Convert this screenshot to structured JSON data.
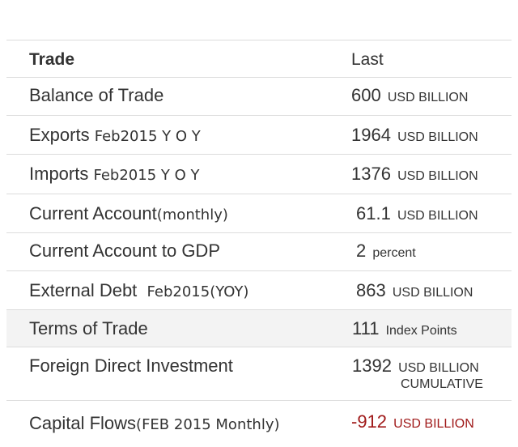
{
  "header": {
    "name": "Trade",
    "value": "Last"
  },
  "rows": [
    {
      "name": "Balance of Trade",
      "qualifier": "",
      "value": "600",
      "unit": "USD BILLION",
      "unit2": ""
    },
    {
      "name": "Exports",
      "qualifier": "Feb2015 Y O Y",
      "value": "1964",
      "unit": "USD BILLION",
      "unit2": ""
    },
    {
      "name": "Imports",
      "qualifier": "Feb2015 Y O Y",
      "value": "1376",
      "unit": "USD BILLION",
      "unit2": ""
    },
    {
      "name": "Current Account",
      "qualifier": "(monthly)",
      "value": "61.1",
      "unit": "USD BILLION",
      "unit2": ""
    },
    {
      "name": "Current Account to GDP",
      "qualifier": "",
      "value": "2",
      "unit": "percent",
      "unit2": ""
    },
    {
      "name": "External Debt",
      "qualifier": "Feb2015(YOY)",
      "value": "863",
      "unit": "USD BILLION",
      "unit2": ""
    },
    {
      "name": "Terms of Trade",
      "qualifier": "",
      "value": "111",
      "unit": "Index Points",
      "unit2": ""
    },
    {
      "name": "Foreign Direct Investment",
      "qualifier": "",
      "value": "1392",
      "unit": "USD BILLION",
      "unit2": "CUMULATIVE"
    },
    {
      "name": "Capital Flows",
      "qualifier": "(FEB 2015 Monthly)",
      "value": "-912",
      "unit": "USD BILLION",
      "unit2": ""
    }
  ],
  "colors": {
    "text": "#333333",
    "negative": "#a01a1a",
    "shaded_row": "#f3f3f3",
    "border": "#dcdcdc"
  }
}
